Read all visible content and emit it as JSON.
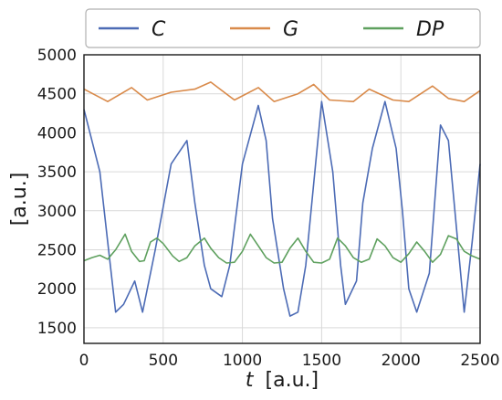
{
  "chart_data": {
    "type": "line",
    "xlabel_var": "t",
    "xlabel_unit": "[a.u.]",
    "ylabel": "[a.u.]",
    "xlim": [
      0,
      2500
    ],
    "ylim": [
      1300,
      5000
    ],
    "grid": true,
    "legend_position": "top",
    "xticks": [
      0,
      500,
      1000,
      1500,
      2000,
      2500
    ],
    "yticks": [
      1500,
      2000,
      2500,
      3000,
      3500,
      4000,
      4500,
      5000
    ],
    "xtick_labels": [
      "0",
      "500",
      "1000",
      "1500",
      "2000",
      "2500"
    ],
    "ytick_labels": [
      "1500",
      "2000",
      "2500",
      "3000",
      "3500",
      "4000",
      "4500",
      "5000"
    ],
    "series": [
      {
        "name": "C",
        "color": "#4c6bb5",
        "x": [
          0,
          100,
          150,
          200,
          250,
          320,
          370,
          450,
          550,
          650,
          700,
          760,
          800,
          870,
          920,
          1000,
          1100,
          1150,
          1190,
          1260,
          1300,
          1350,
          1400,
          1500,
          1570,
          1620,
          1650,
          1720,
          1760,
          1820,
          1900,
          1970,
          2010,
          2050,
          2100,
          2180,
          2250,
          2300,
          2400,
          2450,
          2500
        ],
        "values": [
          4300,
          3500,
          2600,
          1700,
          1800,
          2100,
          1700,
          2500,
          3600,
          3900,
          3100,
          2300,
          2000,
          1900,
          2300,
          3600,
          4350,
          3900,
          2900,
          2000,
          1650,
          1700,
          2300,
          4400,
          3500,
          2300,
          1800,
          2100,
          3100,
          3800,
          4400,
          3800,
          3000,
          2000,
          1700,
          2200,
          4100,
          3900,
          1700,
          2600,
          3600
        ]
      },
      {
        "name": "G",
        "color": "#d98a4a",
        "x": [
          0,
          150,
          300,
          400,
          550,
          700,
          800,
          950,
          1100,
          1200,
          1350,
          1450,
          1550,
          1700,
          1800,
          1950,
          2050,
          2200,
          2300,
          2400,
          2500
        ],
        "values": [
          4560,
          4400,
          4580,
          4420,
          4520,
          4560,
          4650,
          4420,
          4580,
          4400,
          4500,
          4620,
          4420,
          4400,
          4560,
          4420,
          4400,
          4600,
          4440,
          4400,
          4540
        ]
      },
      {
        "name": "DP",
        "color": "#5ea05e",
        "x": [
          0,
          50,
          100,
          150,
          200,
          260,
          300,
          350,
          380,
          420,
          460,
          500,
          560,
          600,
          650,
          700,
          760,
          800,
          850,
          900,
          950,
          1000,
          1050,
          1100,
          1150,
          1200,
          1250,
          1300,
          1350,
          1400,
          1450,
          1500,
          1550,
          1600,
          1650,
          1700,
          1750,
          1800,
          1850,
          1900,
          1950,
          2000,
          2050,
          2100,
          2150,
          2200,
          2250,
          2300,
          2350,
          2400,
          2450,
          2500
        ],
        "values": [
          2360,
          2400,
          2430,
          2380,
          2500,
          2700,
          2480,
          2350,
          2360,
          2600,
          2650,
          2580,
          2420,
          2350,
          2400,
          2550,
          2650,
          2520,
          2400,
          2330,
          2340,
          2480,
          2700,
          2550,
          2400,
          2330,
          2340,
          2520,
          2650,
          2480,
          2340,
          2330,
          2380,
          2650,
          2550,
          2400,
          2340,
          2380,
          2640,
          2550,
          2400,
          2340,
          2450,
          2600,
          2480,
          2340,
          2440,
          2680,
          2640,
          2480,
          2420,
          2380
        ]
      }
    ]
  }
}
